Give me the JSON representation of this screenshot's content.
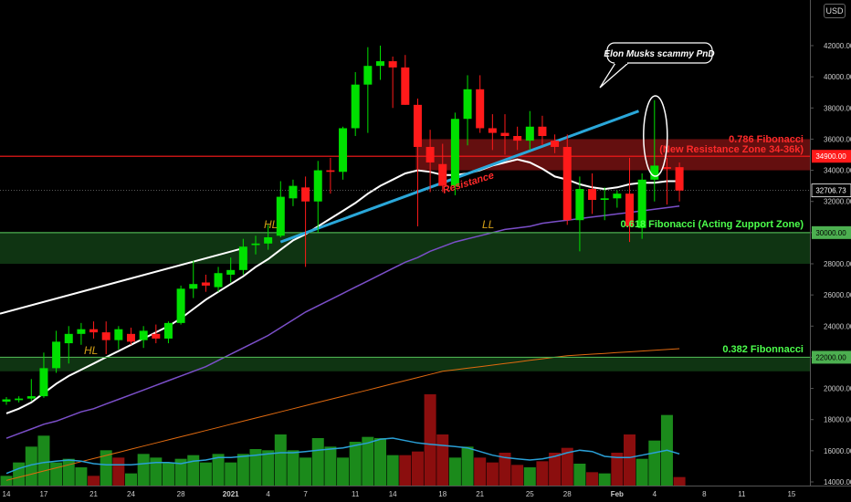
{
  "currency_badge": "USD",
  "chart_data": {
    "type": "candlestick",
    "y_axis": {
      "ticks": [
        "42000.00",
        "40000.00",
        "38000.00",
        "36000.00",
        "34000.00",
        "32000.00",
        "30000.00",
        "28000.00",
        "26000.00",
        "24000.00",
        "22000.00",
        "20000.00",
        "18000.00",
        "16000.00",
        "14000.00"
      ],
      "tick_values": [
        42000,
        40000,
        38000,
        36000,
        34000,
        32000,
        30000,
        28000,
        26000,
        24000,
        22000,
        20000,
        18000,
        16000,
        14000
      ],
      "range": [
        13800,
        44200
      ],
      "position": "right"
    },
    "x_axis": {
      "ticks": [
        "14",
        "17",
        "21",
        "24",
        "28",
        "2021",
        "4",
        "7",
        "11",
        "14",
        "18",
        "21",
        "25",
        "28",
        "Feb",
        "4",
        "8",
        "11",
        "15"
      ],
      "tick_positions_index": [
        0,
        3,
        7,
        10,
        14,
        18,
        21,
        24,
        28,
        31,
        35,
        38,
        42,
        45,
        49,
        52,
        56,
        59,
        63
      ],
      "bold_ticks": [
        "2021",
        "Feb"
      ]
    },
    "candles": [
      {
        "o": 19150,
        "h": 19450,
        "l": 18950,
        "c": 19300
      },
      {
        "o": 19250,
        "h": 19500,
        "l": 19100,
        "c": 19350
      },
      {
        "o": 19350,
        "h": 20600,
        "l": 19200,
        "c": 19500
      },
      {
        "o": 19500,
        "h": 22300,
        "l": 19400,
        "c": 21300
      },
      {
        "o": 21300,
        "h": 23700,
        "l": 21000,
        "c": 23000
      },
      {
        "o": 22900,
        "h": 24000,
        "l": 21600,
        "c": 23500
      },
      {
        "o": 23500,
        "h": 24200,
        "l": 22800,
        "c": 23800
      },
      {
        "o": 23800,
        "h": 24300,
        "l": 23200,
        "c": 23600
      },
      {
        "o": 23600,
        "h": 24300,
        "l": 22200,
        "c": 23100
      },
      {
        "o": 23100,
        "h": 24000,
        "l": 22500,
        "c": 23800
      },
      {
        "o": 23500,
        "h": 23900,
        "l": 22800,
        "c": 23000
      },
      {
        "o": 23100,
        "h": 24000,
        "l": 22600,
        "c": 23700
      },
      {
        "o": 23500,
        "h": 24100,
        "l": 22900,
        "c": 23200
      },
      {
        "o": 23200,
        "h": 24300,
        "l": 22900,
        "c": 24200
      },
      {
        "o": 24200,
        "h": 26600,
        "l": 24100,
        "c": 26400
      },
      {
        "o": 26400,
        "h": 28200,
        "l": 25800,
        "c": 26700
      },
      {
        "o": 26800,
        "h": 27300,
        "l": 26200,
        "c": 26600
      },
      {
        "o": 26500,
        "h": 27800,
        "l": 26200,
        "c": 27400
      },
      {
        "o": 27300,
        "h": 28400,
        "l": 26800,
        "c": 27600
      },
      {
        "o": 27600,
        "h": 29600,
        "l": 27300,
        "c": 29100
      },
      {
        "o": 29200,
        "h": 29800,
        "l": 28600,
        "c": 29300
      },
      {
        "o": 29300,
        "h": 30500,
        "l": 28900,
        "c": 29700
      },
      {
        "o": 29800,
        "h": 33300,
        "l": 29700,
        "c": 32300
      },
      {
        "o": 32200,
        "h": 33400,
        "l": 31700,
        "c": 33000
      },
      {
        "o": 32900,
        "h": 33600,
        "l": 27800,
        "c": 32000
      },
      {
        "o": 32000,
        "h": 34600,
        "l": 30000,
        "c": 34000
      },
      {
        "o": 34000,
        "h": 34800,
        "l": 32500,
        "c": 33900
      },
      {
        "o": 33900,
        "h": 36800,
        "l": 33400,
        "c": 36700
      },
      {
        "o": 36700,
        "h": 40300,
        "l": 36200,
        "c": 39500
      },
      {
        "o": 39500,
        "h": 41900,
        "l": 36400,
        "c": 40700
      },
      {
        "o": 40700,
        "h": 42000,
        "l": 39800,
        "c": 41000
      },
      {
        "o": 41000,
        "h": 41300,
        "l": 38000,
        "c": 40600
      },
      {
        "o": 40600,
        "h": 41400,
        "l": 38200,
        "c": 38200
      },
      {
        "o": 38200,
        "h": 38600,
        "l": 30400,
        "c": 35500
      },
      {
        "o": 35500,
        "h": 36600,
        "l": 32600,
        "c": 34500
      },
      {
        "o": 34400,
        "h": 35700,
        "l": 32600,
        "c": 33000
      },
      {
        "o": 33000,
        "h": 37700,
        "l": 32400,
        "c": 37300
      },
      {
        "o": 37300,
        "h": 40100,
        "l": 35600,
        "c": 39200
      },
      {
        "o": 39200,
        "h": 40100,
        "l": 36400,
        "c": 36700
      },
      {
        "o": 36700,
        "h": 37600,
        "l": 35300,
        "c": 36400
      },
      {
        "o": 36400,
        "h": 37600,
        "l": 35000,
        "c": 36200
      },
      {
        "o": 36200,
        "h": 36800,
        "l": 35300,
        "c": 35900
      },
      {
        "o": 35900,
        "h": 37800,
        "l": 35300,
        "c": 36800
      },
      {
        "o": 36800,
        "h": 37500,
        "l": 35600,
        "c": 36200
      },
      {
        "o": 35900,
        "h": 36300,
        "l": 35100,
        "c": 35500
      },
      {
        "o": 35500,
        "h": 36300,
        "l": 30500,
        "c": 30800
      },
      {
        "o": 30800,
        "h": 33600,
        "l": 28800,
        "c": 32800
      },
      {
        "o": 32800,
        "h": 33800,
        "l": 31200,
        "c": 32100
      },
      {
        "o": 32100,
        "h": 32900,
        "l": 30800,
        "c": 32200
      },
      {
        "o": 32200,
        "h": 32700,
        "l": 31600,
        "c": 32500
      },
      {
        "o": 32500,
        "h": 34800,
        "l": 29400,
        "c": 30400
      },
      {
        "o": 30300,
        "h": 33800,
        "l": 29600,
        "c": 33400
      },
      {
        "o": 33400,
        "h": 38500,
        "l": 32000,
        "c": 34300
      },
      {
        "o": 34200,
        "h": 34800,
        "l": 31800,
        "c": 34100
      },
      {
        "o": 34200,
        "h": 34500,
        "l": 32000,
        "c": 32700
      }
    ],
    "volume_colors": [
      "g",
      "g",
      "g",
      "g",
      "g",
      "g",
      "g",
      "r",
      "g",
      "r",
      "g",
      "g",
      "g",
      "g",
      "g",
      "g",
      "g",
      "g",
      "g",
      "g",
      "g",
      "g",
      "g",
      "g",
      "g",
      "g",
      "g",
      "g",
      "g",
      "g",
      "g",
      "g",
      "r",
      "r",
      "r",
      "r",
      "g",
      "g",
      "r",
      "r",
      "r",
      "r",
      "g",
      "r",
      "r",
      "r",
      "g",
      "r",
      "g",
      "r",
      "r",
      "g",
      "g",
      "g",
      "r"
    ],
    "volume_values": [
      14800,
      15900,
      17200,
      18100,
      15900,
      16200,
      15500,
      14800,
      16900,
      16300,
      15000,
      16600,
      16300,
      15900,
      16200,
      16500,
      15900,
      16600,
      15900,
      16600,
      17000,
      16900,
      18200,
      16900,
      16300,
      17900,
      17200,
      16300,
      17600,
      18000,
      17900,
      16500,
      16500,
      16800,
      21500,
      18200,
      16300,
      17200,
      16300,
      15900,
      16700,
      15700,
      15500,
      16000,
      16700,
      17100,
      15800,
      15100,
      15000,
      16700,
      18200,
      16200,
      17700,
      19800,
      14700
    ],
    "volume_range": [
      14000,
      23000
    ],
    "moving_averages": {
      "white_ma": [
        18400,
        18700,
        19100,
        19700,
        20300,
        20800,
        21200,
        21600,
        22000,
        22400,
        22800,
        23200,
        23600,
        24000,
        24500,
        25100,
        25700,
        26200,
        26700,
        27200,
        27800,
        28300,
        28900,
        29500,
        29900,
        30400,
        30900,
        31400,
        31900,
        32500,
        33000,
        33400,
        33800,
        34000,
        33900,
        33700,
        33700,
        33800,
        34000,
        34300,
        34500,
        34700,
        34500,
        34100,
        33600,
        33400,
        33100,
        32900,
        32800,
        32900,
        33100,
        33200,
        33200,
        33300,
        33300
      ],
      "purple_ma": [
        16800,
        17100,
        17400,
        17700,
        17900,
        18200,
        18500,
        18700,
        19000,
        19300,
        19600,
        19900,
        20200,
        20500,
        20800,
        21100,
        21400,
        21800,
        22200,
        22600,
        23000,
        23400,
        23900,
        24400,
        24900,
        25300,
        25700,
        26100,
        26500,
        26900,
        27300,
        27700,
        28100,
        28400,
        28800,
        29100,
        29400,
        29600,
        29800,
        30000,
        30200,
        30300,
        30400,
        30600,
        30700,
        30800,
        30900,
        31000,
        31100,
        31200,
        31300,
        31400,
        31500,
        31600,
        31700
      ],
      "orange_ma": [
        14100,
        14300,
        14500,
        14700,
        14900,
        15100,
        15300,
        15500,
        15700,
        15900,
        16100,
        16300,
        16500,
        16700,
        16900,
        17100,
        17300,
        17500,
        17700,
        17900,
        18100,
        18300,
        18500,
        18700,
        18900,
        19100,
        19300,
        19500,
        19700,
        19900,
        20100,
        20300,
        20500,
        20700,
        20900,
        21100,
        21200,
        21300,
        21400,
        21500,
        21600,
        21700,
        21800,
        21900,
        22000,
        22100,
        22150,
        22200,
        22250,
        22300,
        22350,
        22400,
        22450,
        22500,
        22550
      ],
      "volume_ma": [
        15000,
        15400,
        15700,
        15900,
        16000,
        16100,
        16000,
        15800,
        15700,
        15700,
        15700,
        15800,
        15900,
        15900,
        15800,
        16000,
        16100,
        16300,
        16300,
        16400,
        16500,
        16600,
        16700,
        16700,
        16800,
        16900,
        17000,
        17100,
        17300,
        17500,
        17800,
        17900,
        17700,
        17500,
        17400,
        17300,
        17200,
        17100,
        16800,
        16500,
        16300,
        16200,
        16100,
        16200,
        16400,
        16700,
        16900,
        16800,
        16400,
        16300,
        16300,
        16500,
        16700,
        16900,
        16600
      ]
    },
    "zones": [
      {
        "name": "resistance-zone",
        "from": 34000,
        "to": 36000,
        "start_index": 33,
        "color": "#b71c1c"
      },
      {
        "name": "support-zone",
        "from": 28000,
        "to": 30000,
        "start_index": 0,
        "color": "#1b5e20"
      },
      {
        "name": "fib-382-zone",
        "from": 21100,
        "to": 22000,
        "start_index": 0,
        "color": "#1b5e20"
      }
    ],
    "levels": [
      {
        "value": 34900,
        "color": "#ff1a1a",
        "label": "34900.00"
      },
      {
        "value": 30000,
        "color": "#4caf50",
        "label": "30000.00"
      },
      {
        "value": 22000,
        "color": "#4caf50",
        "label": "22000.00"
      }
    ],
    "current_price": {
      "value": 32706.73,
      "label": "32706.73"
    },
    "annotations": {
      "fib_786_line1": "0.786 Fibonacci",
      "fib_786_line2": "(New Resistance Zone 34-36k)",
      "fib_618": "0.618 Fibonacci (Acting Zupport Zone)",
      "fib_382": "0.382 Fibonnacci",
      "resistance": "Resistance",
      "hl_1": "HL",
      "hl_2": "HL",
      "ll": "LL",
      "callout": "Elon Musks scammy PnD"
    },
    "colors": {
      "up": "#00e000",
      "down": "#ff1a1a",
      "volume_up": "#1b8a1b",
      "volume_down": "#8b0e0e",
      "trendline": "#2aa7d9"
    }
  }
}
